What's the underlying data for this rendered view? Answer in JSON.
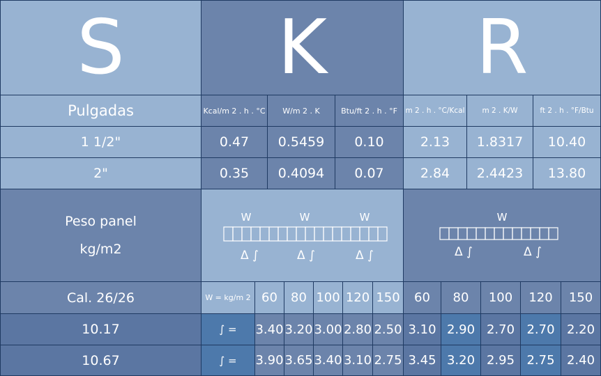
{
  "letters": [
    "S",
    "K",
    "R"
  ],
  "header": {
    "thickness_label": "Pulgadas",
    "units": [
      "Kcal/m 2 . h . °C",
      "W/m 2 . K",
      "Btu/ft 2 . h . °F",
      "m 2 . h . °C/Kcal",
      "m 2 . K/W",
      "ft 2 . h . °F/Btu"
    ]
  },
  "rows": [
    {
      "thickness": "1 1/2\"",
      "values": [
        "0.47",
        "0.5459",
        "0.10",
        "2.13",
        "1.8317",
        "10.40"
      ]
    },
    {
      "thickness": "2\"",
      "values": [
        "0.35",
        "0.4094",
        "0.07",
        "2.84",
        "2.4423",
        "13.80"
      ]
    }
  ],
  "weight": {
    "label_line1": "Peso panel",
    "label_line2": "kg/m2",
    "diagram_load_symbol": "W",
    "diagram_support_symbol": "Δ ∫"
  },
  "spans": {
    "caliber_label": "Cal. 26/26",
    "load_label": "W = kg/m 2",
    "spans_k": [
      "60",
      "80",
      "100",
      "120",
      "150"
    ],
    "spans_r": [
      "60",
      "80",
      "100",
      "120",
      "150"
    ]
  },
  "deflection_rows": [
    {
      "label": "10.17",
      "formula": "∫ =",
      "k_values": [
        "3.40",
        "3.20",
        "3.00",
        "2.80",
        "2.50"
      ],
      "r_values": [
        "3.10",
        "2.90",
        "2.70",
        "2.70",
        "2.20"
      ]
    },
    {
      "label": "10.67",
      "formula": "∫ =",
      "k_values": [
        "3.90",
        "3.65",
        "3.40",
        "3.10",
        "2.75"
      ],
      "r_values": [
        "3.45",
        "3.20",
        "2.95",
        "2.75",
        "2.40"
      ]
    }
  ],
  "colors": {
    "light": "#98b3d2",
    "dark": "#6c84ab",
    "medium": "#5b76a2",
    "blue": "#4d79ab",
    "border": "#1f3a62"
  }
}
